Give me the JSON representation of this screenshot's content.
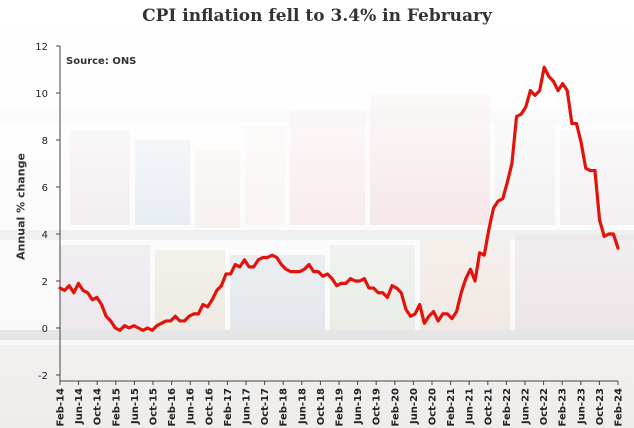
{
  "chart_data": {
    "type": "line",
    "title": "CPI inflation fell to 3.4% in February",
    "source": "Source: ONS",
    "ylabel": "Annual % change",
    "xlabel": "",
    "ylim": [
      -2,
      12
    ],
    "yticks": [
      -2,
      0,
      2,
      4,
      6,
      8,
      10,
      12
    ],
    "xticks": [
      "Feb-14",
      "Jun-14",
      "Oct-14",
      "Feb-15",
      "Jun-15",
      "Oct-15",
      "Feb-16",
      "Jun-16",
      "Oct-16",
      "Feb-17",
      "Jun-17",
      "Oct-17",
      "Feb-18",
      "Jun-18",
      "Oct-18",
      "Feb-19",
      "Jun-19",
      "Oct-19",
      "Feb-20",
      "Jun-20",
      "Oct-20",
      "Feb-21",
      "Jun-21",
      "Oct-21",
      "Feb-22",
      "Jun-22",
      "Oct-22",
      "Feb-23",
      "Jun-23",
      "Oct-23",
      "Feb-24"
    ],
    "grid": false,
    "line_color": "#e3120b",
    "series": [
      {
        "values": [
          1.7,
          1.6,
          1.8,
          1.5,
          1.9,
          1.6,
          1.5,
          1.2,
          1.3,
          1.0,
          0.5,
          0.3,
          0.0,
          -0.1,
          0.1,
          0.0,
          0.1,
          0.0,
          -0.1,
          0.0,
          -0.1,
          0.1,
          0.2,
          0.3,
          0.3,
          0.5,
          0.3,
          0.3,
          0.5,
          0.6,
          0.6,
          1.0,
          0.9,
          1.2,
          1.6,
          1.8,
          2.3,
          2.3,
          2.7,
          2.6,
          2.9,
          2.6,
          2.6,
          2.9,
          3.0,
          3.0,
          3.1,
          3.0,
          2.7,
          2.5,
          2.4,
          2.4,
          2.4,
          2.5,
          2.7,
          2.4,
          2.4,
          2.2,
          2.3,
          2.1,
          1.8,
          1.9,
          1.9,
          2.1,
          2.0,
          2.0,
          2.1,
          1.7,
          1.7,
          1.5,
          1.5,
          1.3,
          1.8,
          1.7,
          1.5,
          0.8,
          0.5,
          0.6,
          1.0,
          0.2,
          0.5,
          0.7,
          0.3,
          0.6,
          0.6,
          0.4,
          0.7,
          1.5,
          2.1,
          2.5,
          2.0,
          3.2,
          3.1,
          4.2,
          5.1,
          5.4,
          5.5,
          6.2,
          7.0,
          9.0,
          9.1,
          9.4,
          10.1,
          9.9,
          10.1,
          11.1,
          10.7,
          10.5,
          10.1,
          10.4,
          10.1,
          8.7,
          8.7,
          7.9,
          6.8,
          6.7,
          6.7,
          4.6,
          3.9,
          4.0,
          4.0,
          3.4
        ]
      }
    ]
  },
  "colors": {
    "line": "#e3120b",
    "text": "#333333",
    "axis": "#444444"
  }
}
